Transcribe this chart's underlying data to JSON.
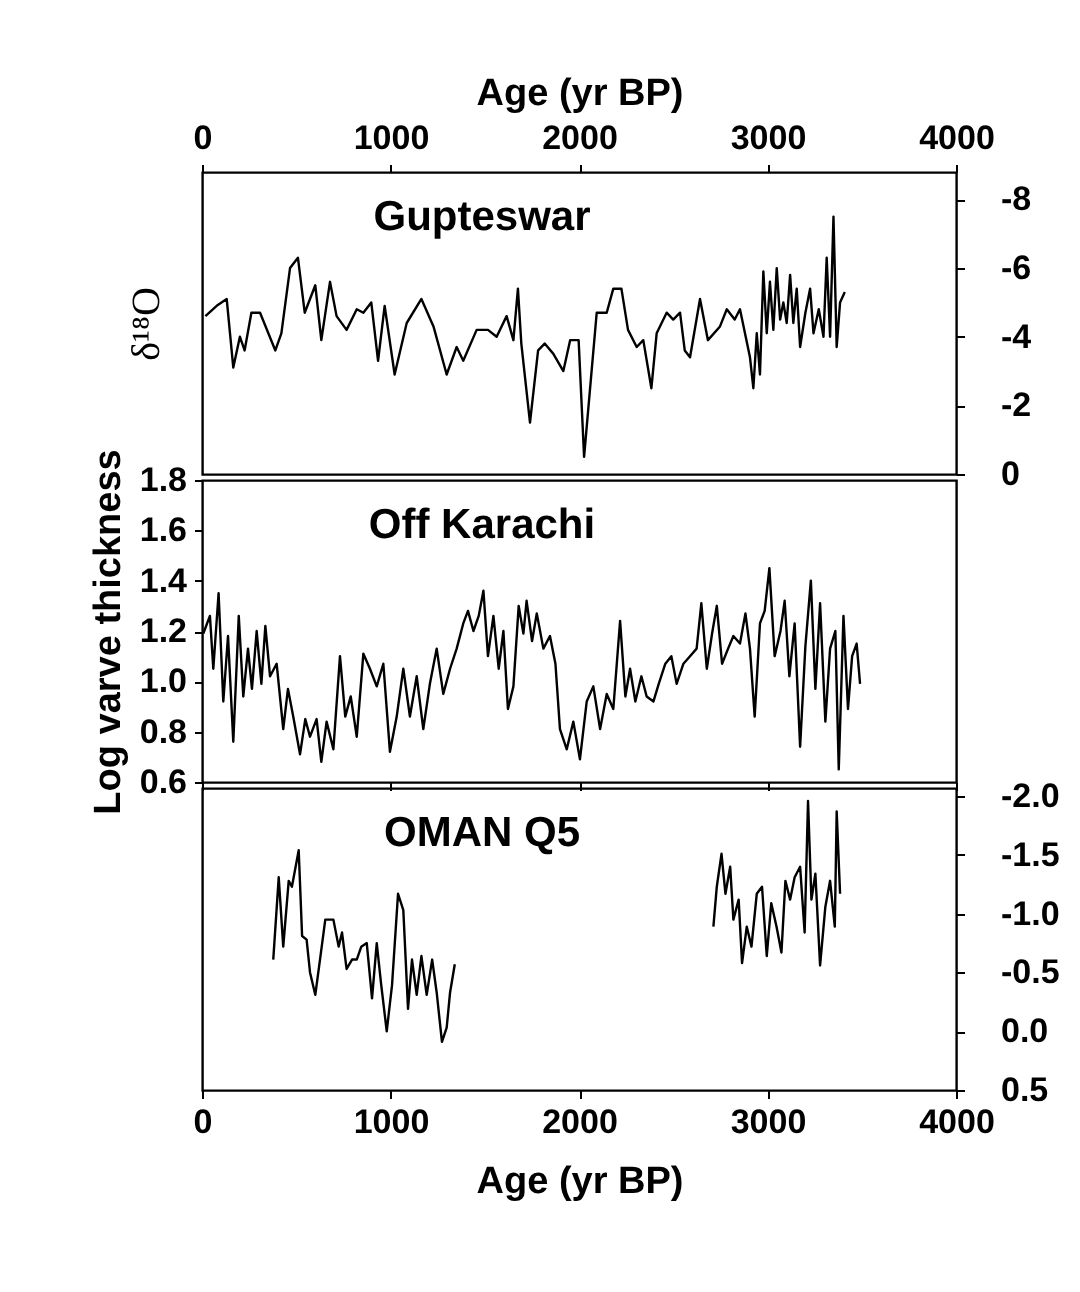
{
  "chart_data": [
    {
      "type": "line",
      "title": "Gupteswar",
      "xlabel": "Age (yr BP)",
      "xlim": [
        0,
        4000
      ],
      "xticks": [
        0,
        1000,
        2000,
        3000,
        4000
      ],
      "ylabel": "δ¹⁸O",
      "ylim": [
        0,
        -8.8
      ],
      "yticks": [
        -8,
        -6,
        -4,
        -2,
        0
      ],
      "grid": false,
      "series": [
        {
          "color": "#000000",
          "x": [
            18,
            78,
            131,
            166,
            201,
            226,
            262,
            308,
            389,
            421,
            467,
            509,
            545,
            601,
            633,
            679,
            714,
            767,
            821,
            856,
            898,
            934,
            969,
            1022,
            1086,
            1164,
            1228,
            1298,
            1351,
            1386,
            1457,
            1517,
            1563,
            1616,
            1652,
            1676,
            1694,
            1740,
            1783,
            1818,
            1864,
            1917,
            1953,
            1998,
            2027,
            2094,
            2147,
            2182,
            2225,
            2260,
            2306,
            2341,
            2384,
            2412,
            2465,
            2500,
            2536,
            2561,
            2589,
            2642,
            2684,
            2748,
            2784,
            2826,
            2854,
            2907,
            2925,
            2943,
            2960,
            2978,
            2996,
            3013,
            3031,
            3049,
            3067,
            3084,
            3102,
            3120,
            3137,
            3155,
            3173,
            3201,
            3226,
            3244,
            3272,
            3297,
            3314,
            3332,
            3350,
            3367,
            3385,
            3410
          ],
          "values": [
            -4.6,
            -4.9,
            -5.1,
            -3.1,
            -4.0,
            -3.6,
            -4.7,
            -4.7,
            -3.6,
            -4.1,
            -6.0,
            -6.3,
            -4.7,
            -5.5,
            -3.9,
            -5.6,
            -4.6,
            -4.2,
            -4.8,
            -4.7,
            -5.0,
            -3.3,
            -4.9,
            -2.9,
            -4.4,
            -5.1,
            -4.3,
            -2.9,
            -3.7,
            -3.3,
            -4.2,
            -4.2,
            -4.0,
            -4.6,
            -3.9,
            -5.4,
            -3.8,
            -1.5,
            -3.6,
            -3.8,
            -3.5,
            -3.0,
            -3.9,
            -3.9,
            -0.5,
            -4.7,
            -4.7,
            -5.4,
            -5.4,
            -4.2,
            -3.7,
            -3.9,
            -2.5,
            -4.1,
            -4.7,
            -4.5,
            -4.7,
            -3.6,
            -3.4,
            -5.1,
            -3.9,
            -4.3,
            -4.8,
            -4.5,
            -4.8,
            -3.4,
            -2.5,
            -4.1,
            -2.9,
            -5.9,
            -4.1,
            -5.6,
            -4.2,
            -6.0,
            -4.5,
            -5.0,
            -4.4,
            -5.8,
            -4.4,
            -5.4,
            -3.7,
            -4.7,
            -5.4,
            -4.1,
            -4.8,
            -4.0,
            -6.3,
            -4.0,
            -7.5,
            -3.7,
            -5.0,
            -5.3
          ]
        }
      ]
    },
    {
      "type": "line",
      "title": "Off Karachi",
      "ylabel": "Log varve thickness",
      "xlim": [
        0,
        4000
      ],
      "xticks": [
        0,
        1000,
        2000,
        3000,
        4000
      ],
      "ylim": [
        0.6,
        1.8
      ],
      "yticks": [
        0.6,
        0.8,
        {
          "value": 1,
          "label": "1.0"
        },
        1.2,
        1.4,
        1.6,
        1.8
      ],
      "tick_labels": "y",
      "grid": false,
      "series": [
        {
          "color": "#000000",
          "x": [
            7,
            42,
            60,
            88,
            113,
            138,
            166,
            195,
            219,
            244,
            265,
            290,
            315,
            336,
            361,
            396,
            431,
            456,
            484,
            520,
            548,
            573,
            608,
            633,
            661,
            697,
            732,
            760,
            789,
            821,
            856,
            891,
            927,
            962,
            997,
            1033,
            1068,
            1103,
            1139,
            1174,
            1209,
            1245,
            1280,
            1316,
            1351,
            1386,
            1411,
            1440,
            1468,
            1493,
            1517,
            1546,
            1574,
            1599,
            1623,
            1652,
            1680,
            1705,
            1722,
            1751,
            1776,
            1811,
            1846,
            1875,
            1899,
            1935,
            1970,
            2005,
            2041,
            2076,
            2112,
            2147,
            2182,
            2218,
            2246,
            2271,
            2299,
            2331,
            2359,
            2395,
            2423,
            2458,
            2490,
            2518,
            2554,
            2589,
            2624,
            2649,
            2678,
            2706,
            2731,
            2759,
            2791,
            2819,
            2854,
            2883,
            2907,
            2932,
            2960,
            2985,
            3010,
            3038,
            3069,
            3091,
            3116,
            3144,
            3173,
            3201,
            3230,
            3254,
            3279,
            3307,
            3332,
            3360,
            3378,
            3403,
            3427,
            3449,
            3473,
            3491
          ],
          "values": [
            1.19,
            1.26,
            1.05,
            1.35,
            0.92,
            1.18,
            0.76,
            1.26,
            0.94,
            1.13,
            0.97,
            1.2,
            0.99,
            1.22,
            1.02,
            1.07,
            0.81,
            0.97,
            0.86,
            0.71,
            0.85,
            0.78,
            0.85,
            0.68,
            0.84,
            0.73,
            1.1,
            0.86,
            0.94,
            0.78,
            1.11,
            1.05,
            0.98,
            1.07,
            0.72,
            0.86,
            1.05,
            0.86,
            1.02,
            0.81,
            0.99,
            1.13,
            0.95,
            1.05,
            1.13,
            1.23,
            1.28,
            1.2,
            1.26,
            1.36,
            1.1,
            1.26,
            1.05,
            1.2,
            0.89,
            0.98,
            1.3,
            1.19,
            1.32,
            1.16,
            1.27,
            1.13,
            1.18,
            1.07,
            0.81,
            0.73,
            0.84,
            0.69,
            0.92,
            0.98,
            0.81,
            0.95,
            0.89,
            1.24,
            0.94,
            1.05,
            0.92,
            1.02,
            0.94,
            0.92,
            0.99,
            1.07,
            1.1,
            0.99,
            1.07,
            1.1,
            1.13,
            1.31,
            1.05,
            1.19,
            1.3,
            1.07,
            1.13,
            1.18,
            1.15,
            1.27,
            1.13,
            0.86,
            1.23,
            1.28,
            1.45,
            1.1,
            1.2,
            1.32,
            1.02,
            1.23,
            0.74,
            1.14,
            1.4,
            0.97,
            1.31,
            0.84,
            1.13,
            1.2,
            0.65,
            1.26,
            0.89,
            1.1,
            1.15,
            0.99
          ]
        }
      ]
    },
    {
      "type": "line",
      "title": "OMAN Q5",
      "xlabel": "Age (yr BP)",
      "xlim": [
        0,
        4000
      ],
      "xticks": [
        0,
        1000,
        2000,
        3000,
        4000
      ],
      "ylim": [
        0.5,
        -2.07
      ],
      "yticks": [
        {
          "value": -2,
          "label": "-2.0"
        },
        -1.5,
        {
          "value": -1,
          "label": "-1.0"
        },
        -0.5,
        {
          "value": 0,
          "label": "0.0"
        },
        0.5
      ],
      "grid": false,
      "series": [
        {
          "color": "#000000",
          "x": [
            378,
            407,
            431,
            460,
            477,
            513,
            531,
            555,
            573,
            601,
            626,
            654,
            697,
            725,
            743,
            767,
            796,
            821,
            845,
            874,
            902,
            927,
            951,
            980,
            1008,
            1040,
            1068,
            1093,
            1114,
            1139,
            1164,
            1192,
            1221,
            1245,
            1273,
            1298,
            1316,
            1341,
            2000,
            2713,
            2731,
            2756,
            2777,
            2802,
            2819,
            2847,
            2865,
            2890,
            2915,
            2943,
            2971,
            2996,
            3020,
            3048,
            3074,
            3095,
            3120,
            3144,
            3173,
            3197,
            3215,
            3233,
            3254,
            3279,
            3307,
            3332,
            3357,
            3367,
            3385
          ],
          "values": [
            -0.61,
            -1.31,
            -0.72,
            -1.28,
            -1.23,
            -1.54,
            -0.81,
            -0.78,
            -0.5,
            -0.31,
            -0.61,
            -0.95,
            -0.95,
            -0.72,
            -0.84,
            -0.53,
            -0.61,
            -0.61,
            -0.72,
            -0.75,
            -0.28,
            -0.75,
            -0.39,
            0.0,
            -0.39,
            -1.17,
            -1.03,
            -0.19,
            -0.61,
            -0.31,
            -0.64,
            -0.31,
            -0.61,
            -0.33,
            0.09,
            -0.03,
            -0.33,
            -0.57,
            null,
            -0.89,
            -1.23,
            -1.51,
            -1.17,
            -1.4,
            -0.95,
            -1.12,
            -0.58,
            -0.89,
            -0.72,
            -1.17,
            -1.23,
            -0.64,
            -1.09,
            -0.89,
            -0.67,
            -1.28,
            -1.12,
            -1.31,
            -1.4,
            -0.84,
            -1.96,
            -1.12,
            -1.34,
            -0.56,
            -1.06,
            -1.28,
            -0.89,
            -1.87,
            -1.17
          ]
        }
      ]
    }
  ]
}
